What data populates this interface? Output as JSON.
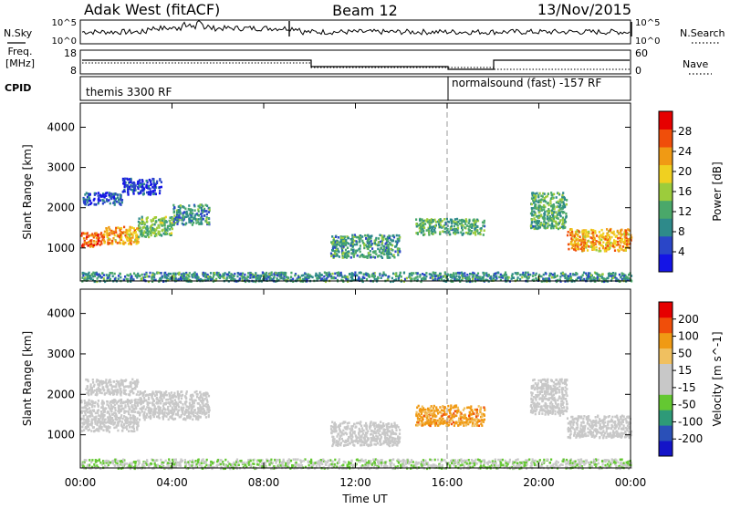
{
  "header": {
    "station": "Adak West (fitACF)",
    "beam": "Beam 12",
    "date": "13/Nov/2015"
  },
  "strip_labels": {
    "nsky": "N.Sky",
    "freq_line1": "Freq.",
    "freq_line2": "[MHz]",
    "cpid": "CPID",
    "nsearch": "N.Search",
    "nave": "Nave"
  },
  "strip_ticks": {
    "nsky_left": [
      "10^5",
      "10^0"
    ],
    "nsky_right": [
      "10^5",
      "10^0"
    ],
    "freq_left": [
      "18",
      "8"
    ],
    "nave_right": [
      "60",
      "0"
    ]
  },
  "cpid_segments": [
    {
      "label": "themis 3300 RF",
      "start_hour": 0
    },
    {
      "label": "normalsound (fast) -157 RF",
      "start_hour": 16
    }
  ],
  "colors": {
    "power_scale": [
      "#1414e6",
      "#2a46c8",
      "#2e8a8a",
      "#4aa86a",
      "#9ccc3c",
      "#f0d020",
      "#f09a14",
      "#f04e0a",
      "#e60000"
    ],
    "velocity_scale": [
      "#e60000",
      "#f04e0a",
      "#f09a14",
      "#f0c060",
      "#c8c8c8",
      "#c8c8c8",
      "#64c832",
      "#2e9a78",
      "#2a50b8",
      "#1414c8"
    ]
  },
  "chart_data": [
    {
      "type": "heatmap",
      "panel": "power",
      "xlabel": "",
      "ylabel": "Slant Range [km]",
      "x_unit": "hour UT",
      "xlim": [
        0,
        24
      ],
      "ylim": [
        180,
        4600
      ],
      "x_ticks": [
        "00:00",
        "04:00",
        "08:00",
        "12:00",
        "16:00",
        "20:00",
        "00:00"
      ],
      "y_ticks": [
        "1000",
        "2000",
        "3000",
        "4000"
      ],
      "colorbar_label": "Power [dB]",
      "colorbar_ticks": [
        "4",
        "8",
        "12",
        "16",
        "20",
        "24",
        "28"
      ],
      "colorbar_range": [
        0,
        32
      ],
      "regions": [
        {
          "t": [
            0.0,
            1.0
          ],
          "r": [
            1050,
            1400
          ],
          "value": 26
        },
        {
          "t": [
            1.0,
            2.5
          ],
          "r": [
            1120,
            1550
          ],
          "value": 22
        },
        {
          "t": [
            2.5,
            4.0
          ],
          "r": [
            1300,
            1800
          ],
          "value": 14
        },
        {
          "t": [
            4.0,
            5.6
          ],
          "r": [
            1600,
            2100
          ],
          "value": 10
        },
        {
          "t": [
            0.1,
            1.8
          ],
          "r": [
            2100,
            2400
          ],
          "value": 5
        },
        {
          "t": [
            1.8,
            3.5
          ],
          "r": [
            2350,
            2750
          ],
          "value": 4
        },
        {
          "t": [
            10.9,
            13.9
          ],
          "r": [
            780,
            1350
          ],
          "value": 11
        },
        {
          "t": [
            14.6,
            17.6
          ],
          "r": [
            1350,
            1750
          ],
          "value": 12
        },
        {
          "t": [
            19.6,
            21.2
          ],
          "r": [
            1500,
            2400
          ],
          "value": 12
        },
        {
          "t": [
            21.2,
            24.0
          ],
          "r": [
            950,
            1500
          ],
          "value": 22
        },
        {
          "t": [
            0.0,
            24.0
          ],
          "r": [
            190,
            420
          ],
          "value": 10
        }
      ]
    },
    {
      "type": "heatmap",
      "panel": "velocity",
      "xlabel": "Time UT",
      "ylabel": "Slant Range [km]",
      "x_unit": "hour UT",
      "xlim": [
        0,
        24
      ],
      "ylim": [
        180,
        4600
      ],
      "x_ticks": [
        "00:00",
        "04:00",
        "08:00",
        "12:00",
        "16:00",
        "20:00",
        "00:00"
      ],
      "y_ticks": [
        "1000",
        "2000",
        "3000",
        "4000"
      ],
      "colorbar_label": "Velocity [m s^-1]",
      "colorbar_ticks": [
        "200",
        "100",
        "50",
        "15",
        "-15",
        "-50",
        "-100",
        "-200"
      ],
      "colorbar_range": [
        -250,
        250
      ],
      "regions": [
        {
          "t": [
            0.0,
            2.5
          ],
          "r": [
            1100,
            1900
          ],
          "value": 0
        },
        {
          "t": [
            2.5,
            5.6
          ],
          "r": [
            1400,
            2100
          ],
          "value": 0
        },
        {
          "t": [
            0.2,
            2.5
          ],
          "r": [
            2000,
            2400
          ],
          "value": 5
        },
        {
          "t": [
            10.9,
            13.9
          ],
          "r": [
            750,
            1350
          ],
          "value": 0
        },
        {
          "t": [
            14.6,
            17.6
          ],
          "r": [
            1250,
            1750
          ],
          "value": 120
        },
        {
          "t": [
            19.6,
            21.2
          ],
          "r": [
            1500,
            2400
          ],
          "value": 5
        },
        {
          "t": [
            21.2,
            24.0
          ],
          "r": [
            950,
            1500
          ],
          "value": -5
        },
        {
          "t": [
            0.0,
            24.0
          ],
          "r": [
            190,
            420
          ],
          "value": -40
        }
      ]
    }
  ]
}
